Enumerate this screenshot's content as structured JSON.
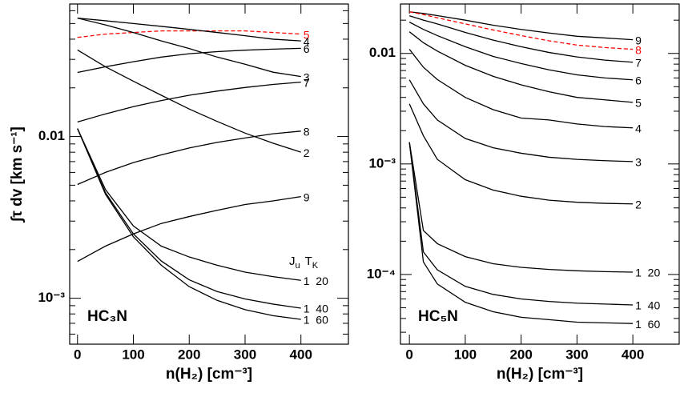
{
  "chart_data": [
    {
      "type": "line",
      "title": "HC₃N",
      "x_label": "n(H₂) [cm⁻³]",
      "y_label": "∫τ dv [km s⁻¹]",
      "legend_header": {
        "j": "J",
        "u": "u",
        "t": "T",
        "k": "K"
      },
      "log_y": true,
      "xlim": [
        -14,
        485
      ],
      "ylim": [
        0.00052,
        0.066
      ],
      "xticks": [
        0,
        100,
        200,
        300,
        400
      ],
      "yticks": [
        {
          "value": 0.001,
          "label": "10⁻³"
        },
        0.01
      ],
      "yminorticks": [
        0.0006,
        0.0007,
        0.0008,
        0.0009,
        0.002,
        0.003,
        0.004,
        0.005,
        0.006,
        0.007,
        0.008,
        0.009,
        0.02,
        0.03,
        0.04,
        0.05,
        0.06
      ],
      "x": [
        0,
        50,
        100,
        150,
        200,
        250,
        300,
        350,
        400
      ],
      "series": [
        {
          "name": "5",
          "color": "#ff0000",
          "dash": true,
          "values": [
            0.041,
            0.043,
            0.044,
            0.045,
            0.045,
            0.045,
            0.045,
            0.044,
            0.043
          ]
        },
        {
          "name": "4",
          "color": "#000000",
          "values": [
            0.054,
            0.052,
            0.05,
            0.048,
            0.046,
            0.044,
            0.042,
            0.04,
            0.039
          ]
        },
        {
          "name": "6",
          "color": "#000000",
          "values": [
            0.0249,
            0.027,
            0.029,
            0.031,
            0.0325,
            0.0335,
            0.0342,
            0.0347,
            0.0351
          ]
        },
        {
          "name": "3",
          "color": "#000000",
          "values": [
            0.054,
            0.049,
            0.044,
            0.039,
            0.035,
            0.031,
            0.028,
            0.025,
            0.0235
          ]
        },
        {
          "name": "7",
          "color": "#000000",
          "values": [
            0.0123,
            0.0138,
            0.0153,
            0.0167,
            0.018,
            0.0191,
            0.0201,
            0.021,
            0.0217
          ]
        },
        {
          "name": "8",
          "color": "#000000",
          "values": [
            0.00505,
            0.006,
            0.0069,
            0.0077,
            0.0085,
            0.0092,
            0.0098,
            0.0104,
            0.0108
          ]
        },
        {
          "name": "2",
          "color": "#000000",
          "values": [
            0.0343,
            0.027,
            0.022,
            0.018,
            0.0148,
            0.0124,
            0.0105,
            0.0091,
            0.008
          ]
        },
        {
          "name": "9",
          "color": "#000000",
          "values": [
            0.00169,
            0.0021,
            0.0025,
            0.0029,
            0.0032,
            0.0035,
            0.0038,
            0.004,
            0.00425
          ]
        },
        {
          "name": "1  20",
          "color": "#000000",
          "values": [
            0.0112,
            0.0047,
            0.0028,
            0.0021,
            0.0018,
            0.0016,
            0.00145,
            0.00136,
            0.00129
          ]
        },
        {
          "name": "1  40",
          "color": "#000000",
          "values": [
            0.0112,
            0.0045,
            0.0025,
            0.0017,
            0.0013,
            0.0011,
            0.00099,
            0.00092,
            0.000868
          ]
        },
        {
          "name": "1  60",
          "color": "#000000",
          "values": [
            0.0112,
            0.0044,
            0.0024,
            0.0016,
            0.00118,
            0.00097,
            0.00085,
            0.00078,
            0.00074
          ]
        }
      ]
    },
    {
      "type": "line",
      "title": "HC₅N",
      "x_label": "n(H₂) [cm⁻³]",
      "log_y": true,
      "xlim": [
        -16,
        483
      ],
      "ylim": [
        2.34e-05,
        0.028
      ],
      "xticks": [
        0,
        100,
        200,
        300,
        400
      ],
      "yticks": [
        {
          "value": 0.0001,
          "label": "10⁻⁴"
        },
        {
          "value": 0.001,
          "label": "10⁻³"
        },
        0.01
      ],
      "yminorticks": [
        3e-05,
        4e-05,
        5e-05,
        6e-05,
        7e-05,
        8e-05,
        9e-05,
        0.0002,
        0.0003,
        0.0004,
        0.0005,
        0.0006,
        0.0007,
        0.0008,
        0.0009,
        0.002,
        0.003,
        0.004,
        0.005,
        0.006,
        0.007,
        0.008,
        0.009,
        0.02
      ],
      "x": [
        0,
        25,
        50,
        100,
        150,
        200,
        250,
        300,
        350,
        400
      ],
      "series": [
        {
          "name": "9",
          "color": "#000000",
          "values": [
            0.0238,
            0.023,
            0.022,
            0.02,
            0.018,
            0.0165,
            0.0153,
            0.0143,
            0.0138,
            0.0133
          ]
        },
        {
          "name": "8",
          "color": "#ff0000",
          "dash": true,
          "values": [
            0.0238,
            0.0225,
            0.021,
            0.0185,
            0.0163,
            0.0145,
            0.013,
            0.0119,
            0.0113,
            0.0109
          ]
        },
        {
          "name": "7",
          "color": "#000000",
          "values": [
            0.0219,
            0.02,
            0.0185,
            0.0155,
            0.0132,
            0.0115,
            0.0102,
            0.0093,
            0.0087,
            0.00832
          ]
        },
        {
          "name": "6",
          "color": "#000000",
          "values": [
            0.0192,
            0.0165,
            0.0145,
            0.0115,
            0.0094,
            0.0081,
            0.0071,
            0.0064,
            0.006,
            0.00577
          ]
        },
        {
          "name": "5",
          "color": "#000000",
          "values": [
            0.0157,
            0.0125,
            0.0105,
            0.0078,
            0.0062,
            0.0052,
            0.0045,
            0.004,
            0.0038,
            0.00361
          ]
        },
        {
          "name": "4",
          "color": "#000000",
          "values": [
            0.0109,
            0.0075,
            0.0058,
            0.004,
            0.0031,
            0.0026,
            0.0025,
            0.0023,
            0.00218,
            0.00212
          ]
        },
        {
          "name": "3",
          "color": "#000000",
          "values": [
            0.00577,
            0.0035,
            0.0025,
            0.0017,
            0.0014,
            0.00125,
            0.00115,
            0.0011,
            0.00107,
            0.00105
          ]
        },
        {
          "name": "2",
          "color": "#000000",
          "values": [
            0.0035,
            0.0018,
            0.0011,
            0.00072,
            0.00058,
            0.00051,
            0.00047,
            0.00045,
            0.00044,
            0.000435
          ]
        },
        {
          "name": "1  20",
          "color": "#000000",
          "values": [
            0.00157,
            0.00025,
            0.00019,
            0.000145,
            0.000125,
            0.000116,
            0.000111,
            0.000108,
            0.000106,
            0.000105
          ]
        },
        {
          "name": "1  40",
          "color": "#000000",
          "values": [
            0.00157,
            0.00016,
            0.00011,
            7.8e-05,
            6.6e-05,
            6e-05,
            5.7e-05,
            5.5e-05,
            5.4e-05,
            5.3e-05
          ]
        },
        {
          "name": "1  60",
          "color": "#000000",
          "values": [
            0.00157,
            0.00013,
            8.2e-05,
            5.6e-05,
            4.6e-05,
            4.1e-05,
            3.9e-05,
            3.7e-05,
            3.65e-05,
            3.6e-05
          ]
        }
      ]
    }
  ]
}
